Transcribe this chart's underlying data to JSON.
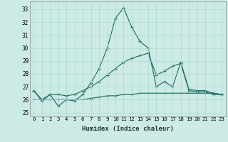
{
  "title": "",
  "xlabel": "Humidex (Indice chaleur)",
  "background_color": "#cceae6",
  "grid_color": "#b0d8d4",
  "line_color": "#1a6b5a",
  "xlim": [
    -0.5,
    23.5
  ],
  "ylim": [
    24.7,
    33.6
  ],
  "yticks": [
    25,
    26,
    27,
    28,
    29,
    30,
    31,
    32,
    33
  ],
  "xticks": [
    0,
    1,
    2,
    3,
    4,
    5,
    6,
    7,
    8,
    9,
    10,
    11,
    12,
    13,
    14,
    15,
    16,
    17,
    18,
    19,
    20,
    21,
    22,
    23
  ],
  "line1": [
    26.7,
    25.9,
    26.4,
    25.5,
    26.0,
    25.9,
    26.4,
    27.3,
    28.4,
    30.0,
    32.3,
    33.1,
    31.6,
    30.5,
    30.0,
    27.0,
    27.4,
    27.0,
    28.9,
    26.8,
    26.7,
    26.7,
    26.5,
    26.4
  ],
  "line2": [
    26.7,
    26.0,
    26.4,
    26.4,
    26.3,
    26.4,
    26.7,
    27.0,
    27.4,
    27.9,
    28.4,
    28.9,
    29.2,
    29.4,
    29.6,
    27.9,
    28.2,
    28.6,
    28.8,
    26.7,
    26.6,
    26.6,
    26.4,
    26.4
  ],
  "line3": [
    26.0,
    26.0,
    26.0,
    26.0,
    26.0,
    26.0,
    26.0,
    26.1,
    26.2,
    26.3,
    26.3,
    26.4,
    26.4,
    26.5,
    26.5,
    26.5,
    26.5,
    26.5,
    26.5,
    26.5,
    26.5,
    26.5,
    26.5,
    26.4
  ]
}
